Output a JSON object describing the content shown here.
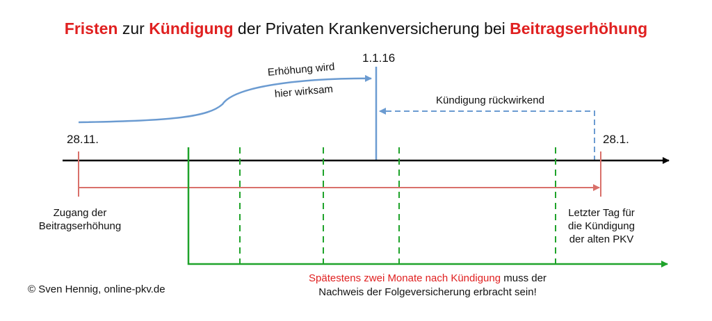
{
  "title": {
    "part1": "Fristen",
    "part2": " zur ",
    "part3": "Kündigung",
    "part4": " der Privaten Krankenversicherung bei ",
    "part5": "Beitragserhöhung"
  },
  "dates": {
    "start": "28.11.",
    "effective": "1.1.16",
    "end": "28.1."
  },
  "labels": {
    "increase_line1": "Erhöhung wird",
    "increase_line2": "hier wirksam",
    "retroactive": "Kündigung rückwirkend",
    "receipt_line1": "Zugang der",
    "receipt_line2": "Beitragserhöhung",
    "lastday_line1": "Letzter Tag für",
    "lastday_line2": "die Kündigung",
    "lastday_line3": "der alten PKV",
    "note_red": "Spätestens zwei Monate nach Kündigung",
    "note_rest1": " muss der",
    "note_line2": "Nachweis der Folgeversicherung erbracht sein!",
    "copyright": "© Sven Hennig, online-pkv.de"
  },
  "colors": {
    "highlight": "#e02020",
    "timeline": "#000000",
    "blue": "#6b9bd1",
    "red_line": "#d9706a",
    "green": "#1fa32a"
  }
}
